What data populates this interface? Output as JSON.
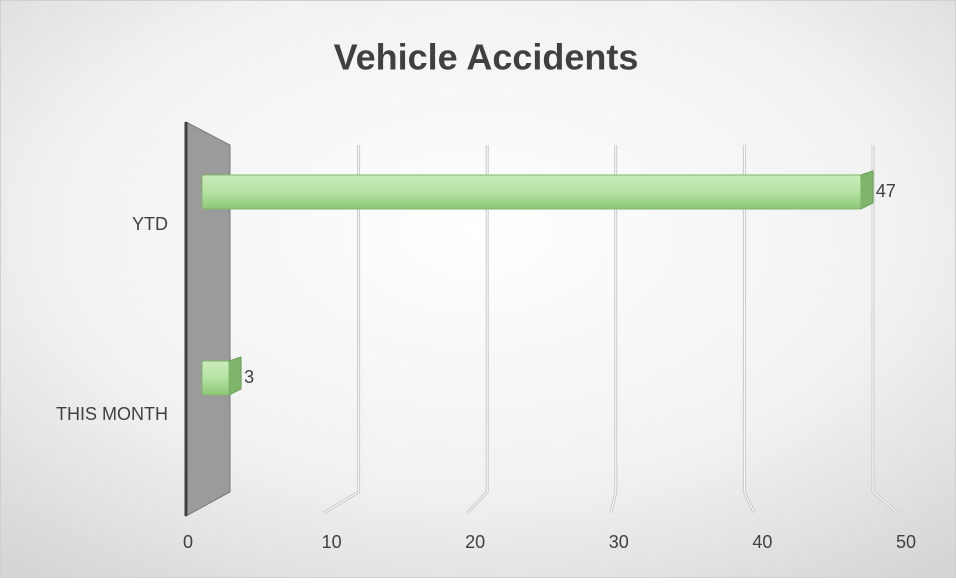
{
  "chart_data": {
    "type": "bar",
    "orientation": "horizontal",
    "title": "Vehicle Accidents",
    "categories": [
      "YTD",
      "THIS MONTH"
    ],
    "values": [
      47,
      3
    ],
    "color": "#a9dc95",
    "xlim": [
      0,
      50
    ],
    "xticks": [
      0,
      10,
      20,
      30,
      40,
      50
    ],
    "grid": true
  }
}
